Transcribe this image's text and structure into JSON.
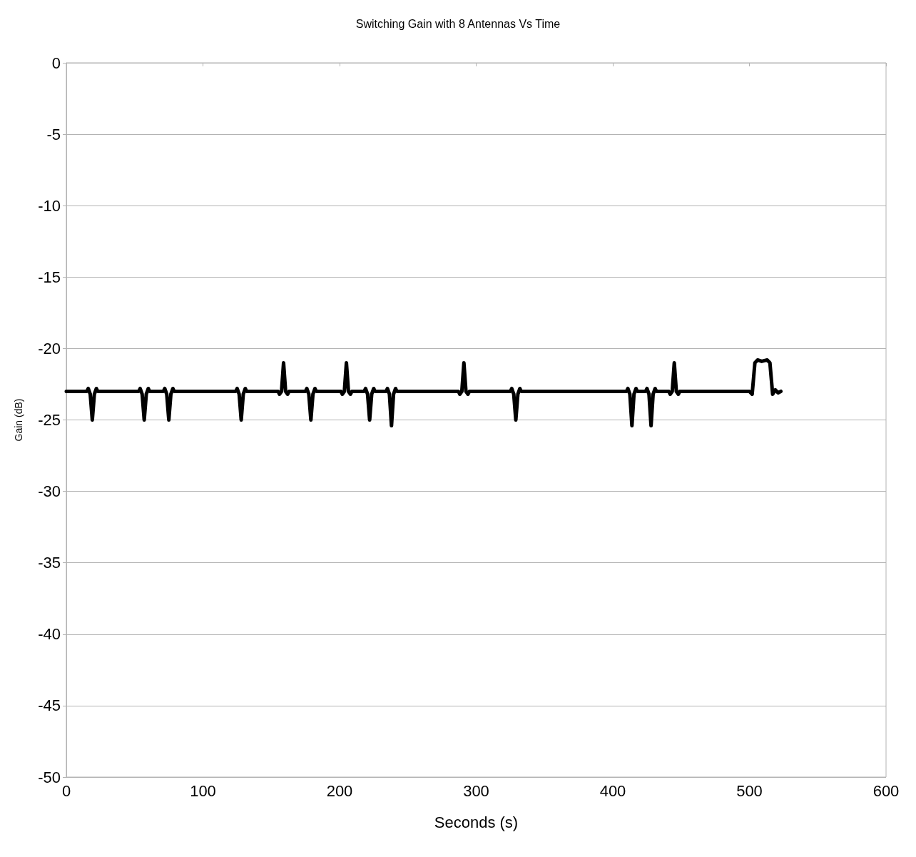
{
  "chart_data": {
    "type": "line",
    "title": "Switching Gain with 8 Antennas Vs Time",
    "xlabel": "Seconds (s)",
    "ylabel": "Gain (dB)",
    "xlim": [
      0,
      600
    ],
    "xticks": [
      0,
      100,
      200,
      300,
      400,
      500,
      600
    ],
    "ylim": [
      -50,
      0
    ],
    "yticks": [
      -50,
      -45,
      -40,
      -35,
      -30,
      -25,
      -20,
      -15,
      -10,
      -5,
      0
    ],
    "grid": "y",
    "marker": "none",
    "line_style": "solid",
    "series": [
      {
        "color": "#000000",
        "x": [
          0,
          15,
          16,
          17.5,
          19,
          20.5,
          22,
          23,
          53,
          54,
          55.5,
          57,
          58.5,
          60,
          61,
          71,
          72,
          73.5,
          75,
          76.5,
          78,
          79,
          124,
          125,
          126.5,
          128,
          129.5,
          131,
          132,
          155,
          156,
          157.5,
          159,
          160.5,
          162,
          163,
          175,
          176,
          177.5,
          179,
          180.5,
          182,
          183,
          201,
          202,
          203.5,
          205,
          206.5,
          208,
          209,
          218,
          219,
          220.5,
          222,
          223.5,
          225,
          226,
          234,
          235,
          236.5,
          238,
          239.5,
          241,
          242,
          287,
          288,
          289.5,
          291,
          292.5,
          294,
          295,
          325,
          326,
          327.5,
          329,
          330.5,
          332,
          333,
          410,
          411,
          412.5,
          414,
          415.5,
          417,
          418,
          424,
          425,
          426.5,
          428,
          429.5,
          431,
          432,
          441,
          442,
          443.5,
          445,
          446.5,
          448,
          449,
          500,
          502,
          504,
          506,
          509,
          513,
          515,
          517,
          519,
          521,
          523
        ],
        "values": [
          -23,
          -23,
          -22.8,
          -23.2,
          -25,
          -23.2,
          -22.8,
          -23,
          -23,
          -22.8,
          -23.2,
          -25,
          -23.2,
          -22.8,
          -23,
          -23,
          -22.8,
          -23.2,
          -25,
          -23.2,
          -22.8,
          -23,
          -23,
          -22.8,
          -23.2,
          -25,
          -23.2,
          -22.8,
          -23,
          -23,
          -23.2,
          -23,
          -21,
          -23,
          -23.2,
          -23,
          -23,
          -22.8,
          -23.2,
          -25,
          -23.2,
          -22.8,
          -23,
          -23,
          -23.2,
          -23,
          -21,
          -23,
          -23.2,
          -23,
          -23,
          -22.8,
          -23.2,
          -25,
          -23.2,
          -22.8,
          -23,
          -23,
          -22.8,
          -23.2,
          -25.4,
          -23.2,
          -22.8,
          -23,
          -23,
          -23.2,
          -23,
          -21,
          -23,
          -23.2,
          -23,
          -23,
          -22.8,
          -23.2,
          -25,
          -23.2,
          -22.8,
          -23,
          -23,
          -22.8,
          -23.2,
          -25.4,
          -23.2,
          -22.8,
          -23,
          -23,
          -22.8,
          -23.2,
          -25.4,
          -23.2,
          -22.8,
          -23,
          -23,
          -23.2,
          -23,
          -21,
          -23,
          -23.2,
          -23,
          -23,
          -23.2,
          -21,
          -20.8,
          -20.9,
          -20.8,
          -21,
          -23.2,
          -22.9,
          -23.1,
          -23
        ]
      }
    ]
  }
}
